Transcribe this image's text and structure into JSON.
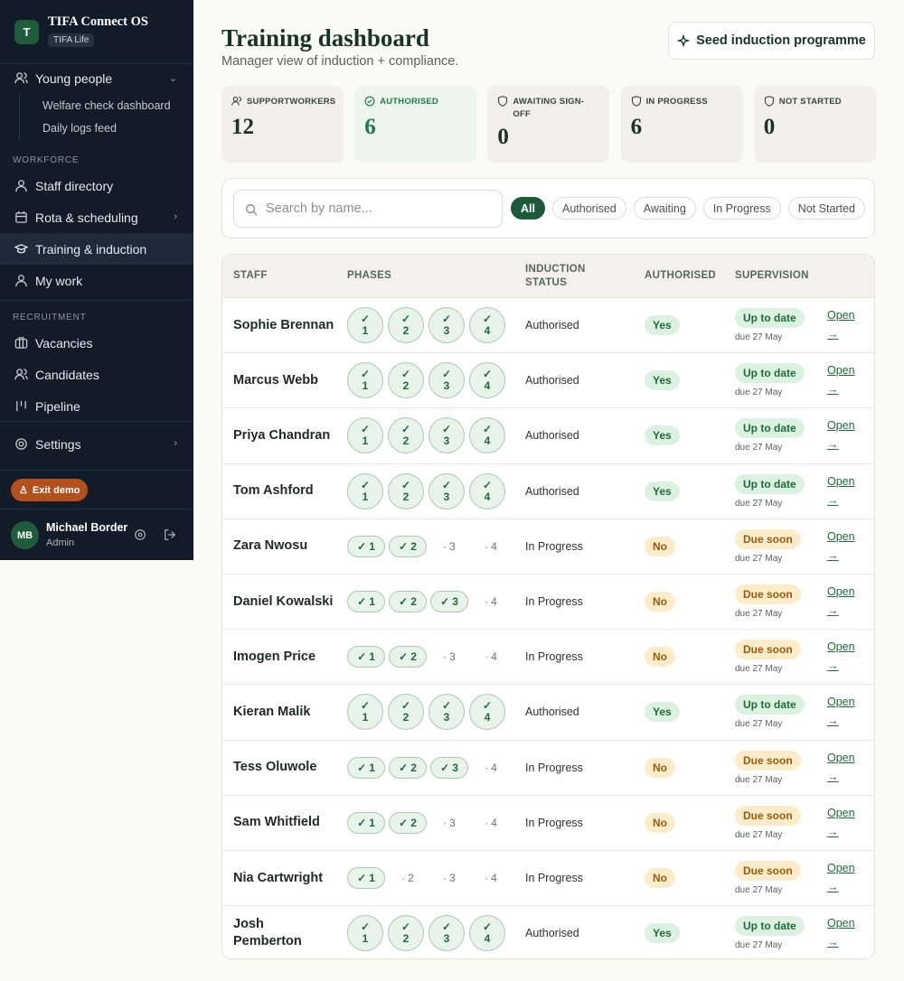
{
  "sidebar": {
    "logo": "T",
    "brand": "TIFA Connect OS",
    "org": "TIFA Life",
    "young_people": "Young people",
    "young_people_children": [
      "Welfare check dashboard",
      "Daily logs feed"
    ],
    "sections": [
      {
        "heading": "WORKFORCE",
        "items": [
          "Staff directory",
          "Rota & scheduling",
          "Training & induction",
          "My work"
        ]
      },
      {
        "heading": "RECRUITMENT",
        "items": [
          "Vacancies",
          "Candidates",
          "Pipeline"
        ]
      }
    ],
    "settings": "Settings",
    "exit": "Exit demo",
    "user": {
      "initials": "MB",
      "name": "Michael Border",
      "role": "Admin"
    }
  },
  "header": {
    "title": "Training dashboard",
    "subtitle": "Manager view of induction + compliance.",
    "action": "Seed induction programme"
  },
  "stats": [
    {
      "label": "SUPPORTWORKERS",
      "value": 12
    },
    {
      "label": "AUTHORISED",
      "value": 6
    },
    {
      "label": "AWAITING SIGN-OFF",
      "value": 0
    },
    {
      "label": "IN PROGRESS",
      "value": 6
    },
    {
      "label": "NOT STARTED",
      "value": 0
    }
  ],
  "search_placeholder": "Search by name...",
  "filters": [
    "All",
    "Authorised",
    "Awaiting",
    "In Progress",
    "Not Started"
  ],
  "table": {
    "columns": [
      "STAFF",
      "PHASES",
      "INDUCTION STATUS",
      "AUTHORISED",
      "SUPERVISION"
    ],
    "phases": [
      1,
      2,
      3,
      4
    ],
    "rows": [
      {
        "name": "Sophie Brennan",
        "phases_done": 4,
        "status": "Authorised",
        "authorised": "Yes",
        "supervision": "Up to date",
        "due": "due 27 May",
        "action": "Open →"
      },
      {
        "name": "Marcus Webb",
        "phases_done": 4,
        "status": "Authorised",
        "authorised": "Yes",
        "supervision": "Up to date",
        "due": "due 27 May",
        "action": "Open →"
      },
      {
        "name": "Priya Chandran",
        "phases_done": 4,
        "status": "Authorised",
        "authorised": "Yes",
        "supervision": "Up to date",
        "due": "due 27 May",
        "action": "Open →"
      },
      {
        "name": "Tom Ashford",
        "phases_done": 4,
        "status": "Authorised",
        "authorised": "Yes",
        "supervision": "Up to date",
        "due": "due 27 May",
        "action": "Open →"
      },
      {
        "name": "Zara Nwosu",
        "phases_done": 2,
        "status": "In Progress",
        "authorised": "No",
        "supervision": "Due soon",
        "due": "due 27 May",
        "action": "Open →"
      },
      {
        "name": "Daniel Kowalski",
        "phases_done": 3,
        "status": "In Progress",
        "authorised": "No",
        "supervision": "Due soon",
        "due": "due 27 May",
        "action": "Open →"
      },
      {
        "name": "Imogen Price",
        "phases_done": 2,
        "status": "In Progress",
        "authorised": "No",
        "supervision": "Due soon",
        "due": "due 27 May",
        "action": "Open →"
      },
      {
        "name": "Kieran Malik",
        "phases_done": 4,
        "status": "Authorised",
        "authorised": "Yes",
        "supervision": "Up to date",
        "due": "due 27 May",
        "action": "Open →"
      },
      {
        "name": "Tess Oluwole",
        "phases_done": 3,
        "status": "In Progress",
        "authorised": "No",
        "supervision": "Due soon",
        "due": "due 27 May",
        "action": "Open →"
      },
      {
        "name": "Sam Whitfield",
        "phases_done": 2,
        "status": "In Progress",
        "authorised": "No",
        "supervision": "Due soon",
        "due": "due 27 May",
        "action": "Open →"
      },
      {
        "name": "Nia Cartwright",
        "phases_done": 1,
        "status": "In Progress",
        "authorised": "No",
        "supervision": "Due soon",
        "due": "due 27 May",
        "action": "Open →"
      },
      {
        "name": "Josh Pemberton",
        "phases_done": 4,
        "status": "Authorised",
        "authorised": "Yes",
        "supervision": "Up to date",
        "due": "due 27 May",
        "action": "Open →"
      }
    ]
  }
}
